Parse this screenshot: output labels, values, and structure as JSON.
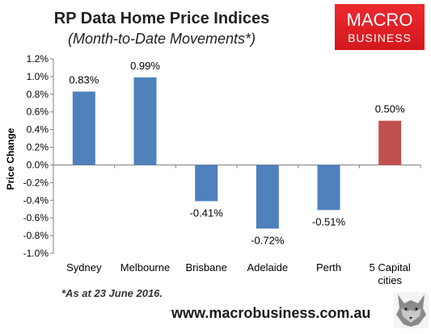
{
  "chart_data": {
    "type": "bar",
    "title": "RP Data Home Price Indices",
    "subtitle": "(Month-to-Date Movements*)",
    "ylabel": "Price Change",
    "xlabel": "",
    "categories": [
      "Sydney",
      "Melbourne",
      "Brisbane",
      "Adelaide",
      "Perth",
      "5 Capital cities"
    ],
    "values": [
      0.83,
      0.99,
      -0.41,
      -0.72,
      -0.51,
      0.5
    ],
    "data_labels": [
      "0.83%",
      "0.99%",
      "-0.41%",
      "-0.72%",
      "-0.51%",
      "0.50%"
    ],
    "bar_colors": [
      "#4f81bd",
      "#4f81bd",
      "#4f81bd",
      "#4f81bd",
      "#4f81bd",
      "#c0504d"
    ],
    "ylim": [
      -1.0,
      1.2
    ],
    "yticks": [
      1.2,
      1.0,
      0.8,
      0.6,
      0.4,
      0.2,
      0.0,
      -0.2,
      -0.4,
      -0.6,
      -0.8,
      -1.0
    ],
    "ytick_labels": [
      "1.2%",
      "1.0%",
      "0.8%",
      "0.6%",
      "0.4%",
      "0.2%",
      "0.0%",
      "-0.2%",
      "-0.4%",
      "-0.6%",
      "-0.8%",
      "-1.0%"
    ],
    "grid": false,
    "legend": "none"
  },
  "footnote": "*As at 23 June 2016.",
  "website": "www.macrobusiness.com.au",
  "logo": {
    "line1": "MACRO",
    "line2": "BUSINESS",
    "color": "#e2252b"
  },
  "wolf_icon": "wolf-icon"
}
